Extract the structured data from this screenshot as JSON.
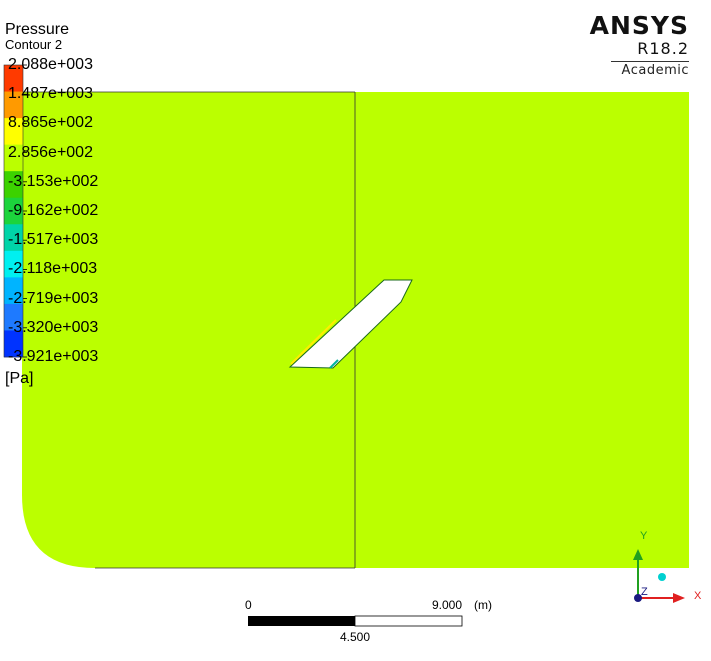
{
  "legend": {
    "variable": "Pressure",
    "contour": "Contour 2",
    "unit": "[Pa]",
    "levels": [
      "2.088e+003",
      "1.487e+003",
      "8.865e+002",
      "2.856e+002",
      "-3.153e+002",
      "-9.162e+002",
      "-1.517e+003",
      "-2.118e+003",
      "-2.719e+003",
      "-3.320e+003",
      "-3.921e+003"
    ],
    "colors": [
      "#ff3a00",
      "#ff9a00",
      "#ffff00",
      "#bbff00",
      "#3cd200",
      "#1cd43c",
      "#00d4a8",
      "#00f0f0",
      "#00b4ff",
      "#1e7aff",
      "#0033ff"
    ]
  },
  "brand": {
    "name": "ANSYS",
    "version": "R18.2",
    "edition": "Academic"
  },
  "domain_color": "#bbff00",
  "scale": {
    "start": "0",
    "mid": "4.500",
    "end": "9.000",
    "unit": "(m)"
  },
  "axes": {
    "x": "X",
    "y": "Y",
    "z": "Z",
    "x_color": "#e02020",
    "y_color": "#20a020"
  }
}
